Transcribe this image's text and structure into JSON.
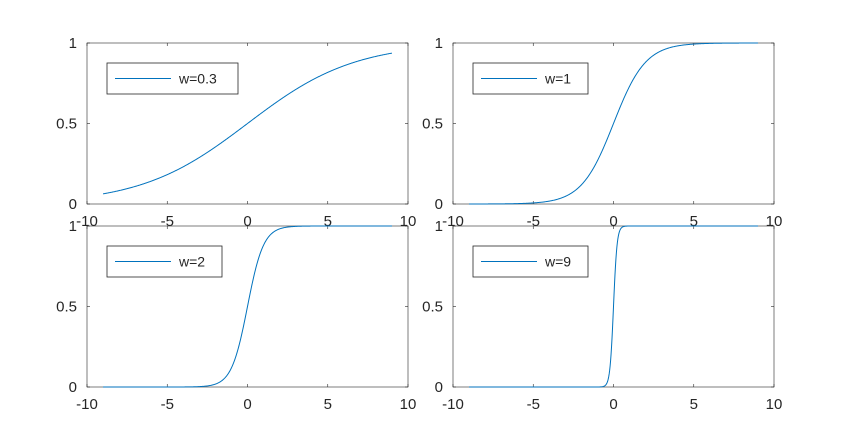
{
  "figure": {
    "background": "#ffffff",
    "line_color": "#0072bd",
    "axis_color": "#262626"
  },
  "chart_data": [
    {
      "type": "line",
      "function": "1/(1+exp(-w*x))",
      "w": 0.3,
      "xlim": [
        -10,
        10
      ],
      "ylim": [
        0,
        1
      ],
      "x_range": [
        -9,
        9
      ],
      "xticks": [
        -10,
        -5,
        0,
        5,
        10
      ],
      "yticks": [
        0,
        0.5,
        1
      ],
      "legend": "top-left",
      "grid": false,
      "series": [
        {
          "name": "w=0.3",
          "color": "#0072bd",
          "points": [
            [
              -9,
              0.063
            ],
            [
              -6,
              0.142
            ],
            [
              -3,
              0.289
            ],
            [
              0,
              0.5
            ],
            [
              3,
              0.711
            ],
            [
              6,
              0.858
            ],
            [
              9,
              0.937
            ]
          ]
        }
      ]
    },
    {
      "type": "line",
      "function": "1/(1+exp(-w*x))",
      "w": 1,
      "xlim": [
        -10,
        10
      ],
      "ylim": [
        0,
        1
      ],
      "x_range": [
        -9,
        9
      ],
      "xticks": [
        -10,
        -5,
        0,
        5,
        10
      ],
      "yticks": [
        0,
        0.5,
        1
      ],
      "legend": "top-left",
      "grid": false,
      "series": [
        {
          "name": "w=1",
          "color": "#0072bd",
          "points": [
            [
              -9,
              0.0001
            ],
            [
              -4,
              0.018
            ],
            [
              -2,
              0.119
            ],
            [
              0,
              0.5
            ],
            [
              2,
              0.881
            ],
            [
              4,
              0.982
            ],
            [
              9,
              0.9999
            ]
          ]
        }
      ]
    },
    {
      "type": "line",
      "function": "1/(1+exp(-w*x))",
      "w": 2,
      "xlim": [
        -10,
        10
      ],
      "ylim": [
        0,
        1
      ],
      "x_range": [
        -9,
        9
      ],
      "xticks": [
        -10,
        -5,
        0,
        5,
        10
      ],
      "yticks": [
        0,
        0.5,
        1
      ],
      "legend": "top-left",
      "grid": false,
      "series": [
        {
          "name": "w=2",
          "color": "#0072bd",
          "points": [
            [
              -9,
              0.0
            ],
            [
              -2,
              0.018
            ],
            [
              -1,
              0.119
            ],
            [
              0,
              0.5
            ],
            [
              1,
              0.881
            ],
            [
              2,
              0.982
            ],
            [
              9,
              1.0
            ]
          ]
        }
      ]
    },
    {
      "type": "line",
      "function": "1/(1+exp(-w*x))",
      "w": 9,
      "xlim": [
        -10,
        10
      ],
      "ylim": [
        0,
        1
      ],
      "x_range": [
        -9,
        9
      ],
      "xticks": [
        -10,
        -5,
        0,
        5,
        10
      ],
      "yticks": [
        0,
        0.5,
        1
      ],
      "legend": "top-left",
      "grid": false,
      "series": [
        {
          "name": "w=9",
          "color": "#0072bd",
          "points": [
            [
              -9,
              0.0
            ],
            [
              -0.5,
              0.011
            ],
            [
              -0.2,
              0.142
            ],
            [
              0,
              0.5
            ],
            [
              0.2,
              0.858
            ],
            [
              0.5,
              0.989
            ],
            [
              9,
              1.0
            ]
          ]
        }
      ]
    }
  ]
}
